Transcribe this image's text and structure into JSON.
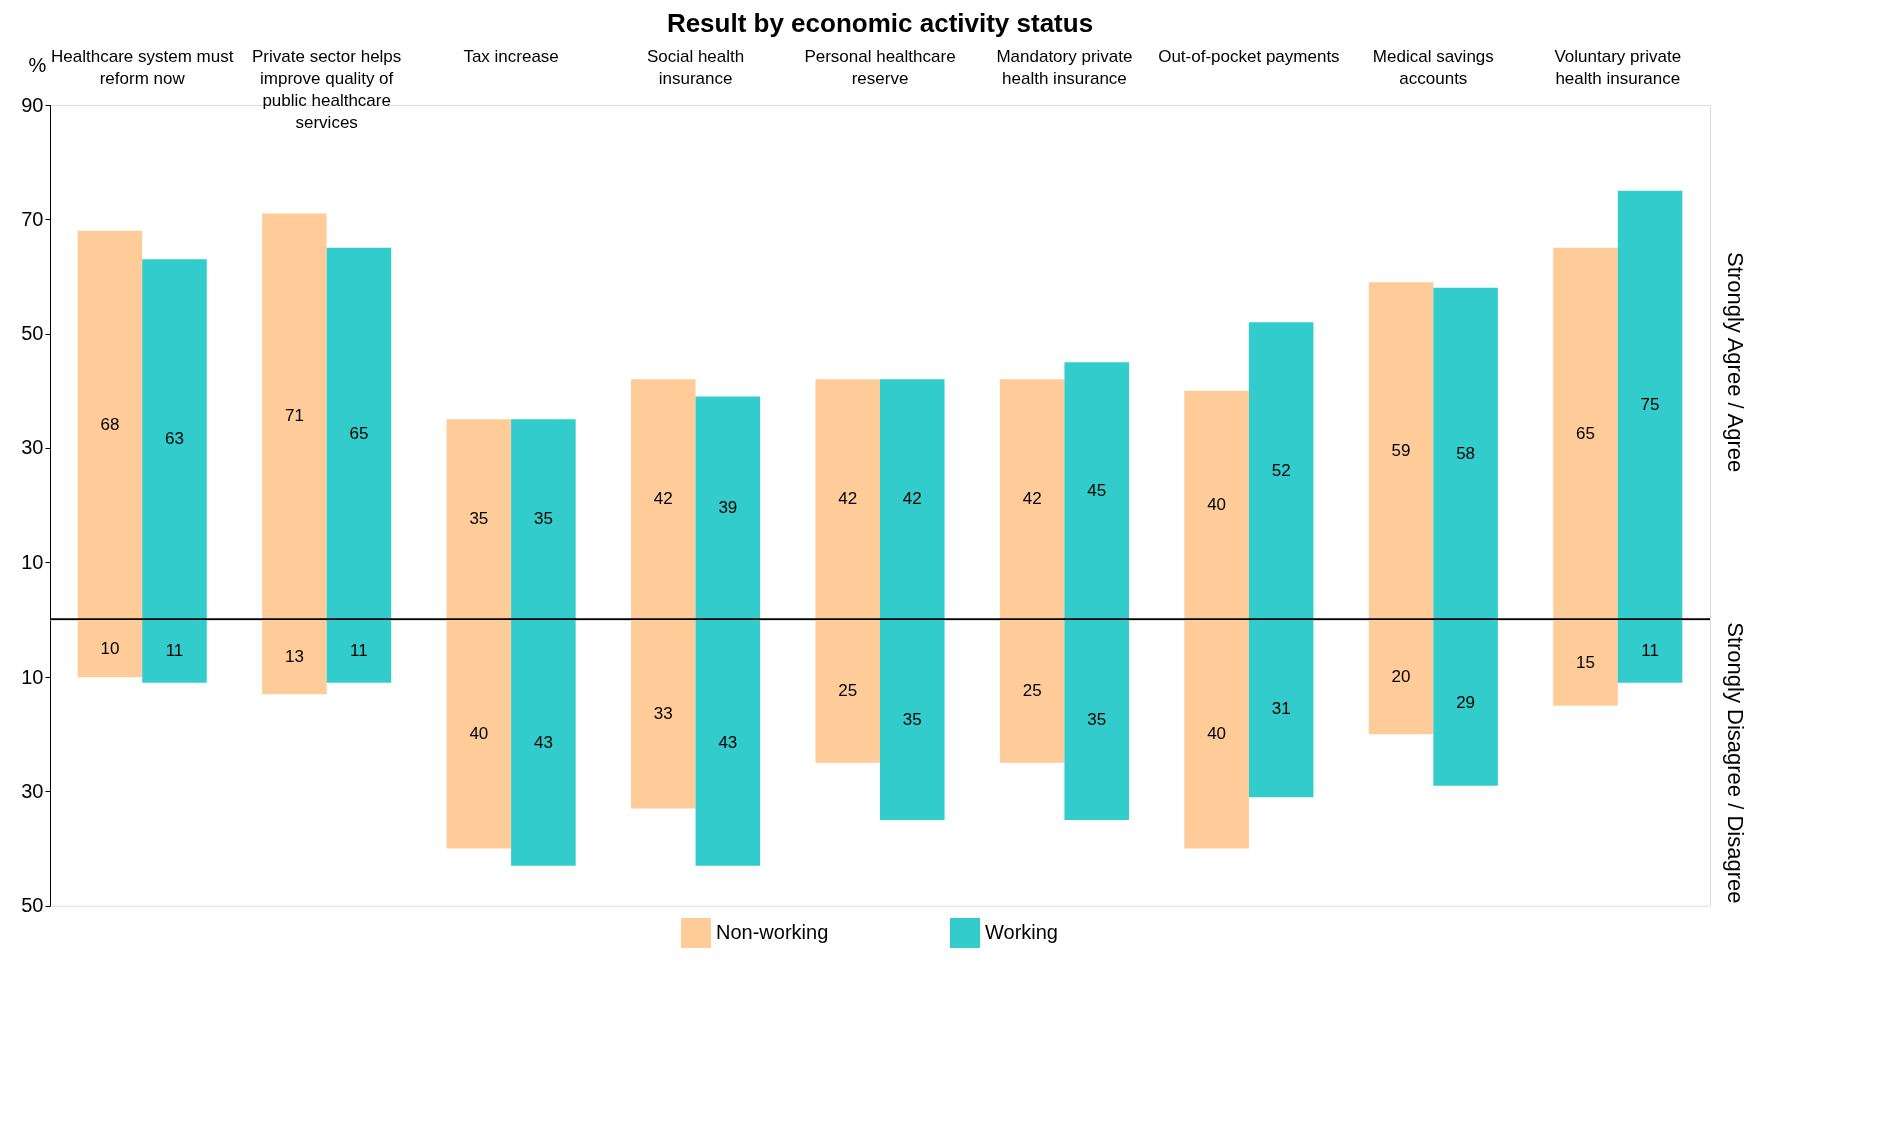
{
  "chart_data": [
    {
      "type": "bar",
      "title": "Result by economic activity status",
      "ylabel": "%",
      "categories": [
        "Healthcare system must reform now",
        "Private sector helps improve quality of public healthcare services",
        "Tax increase",
        "Social health insurance",
        "Personal healthcare reserve",
        "Mandatory private health insurance",
        "Out-of-pocket payments",
        "Medical savings accounts",
        "Voluntary private health insurance"
      ],
      "series": [
        {
          "name": "Non-working",
          "color": "#ffcc99",
          "values": [
            68,
            71,
            35,
            42,
            42,
            42,
            40,
            59,
            65
          ]
        },
        {
          "name": "Working",
          "color": "#33cccc",
          "values": [
            63,
            65,
            35,
            39,
            42,
            45,
            52,
            58,
            75
          ]
        }
      ],
      "ylim": [
        0,
        90
      ],
      "yticks": [
        10,
        30,
        50,
        70,
        90
      ],
      "ref_lines": [
        {
          "axis": "y",
          "value": 0,
          "color": "#000000"
        }
      ],
      "annotations": [
        "Strongly Agree / Agree"
      ],
      "data_labels": true,
      "legend": "bottom",
      "grid": false
    },
    {
      "type": "bar",
      "series": [
        {
          "color": "#ffcc99",
          "values": [
            10,
            13,
            40,
            33,
            25,
            25,
            40,
            20,
            15
          ]
        },
        {
          "color": "#33cccc",
          "values": [
            11,
            11,
            43,
            43,
            35,
            35,
            31,
            29,
            11
          ]
        }
      ],
      "ylim": [
        50,
        0
      ],
      "yticks": [
        10,
        30,
        50
      ],
      "annotations": [
        "Strongly Disagree / Disagree"
      ],
      "tick_labels": "y",
      "data_labels": true,
      "grid": false
    }
  ]
}
